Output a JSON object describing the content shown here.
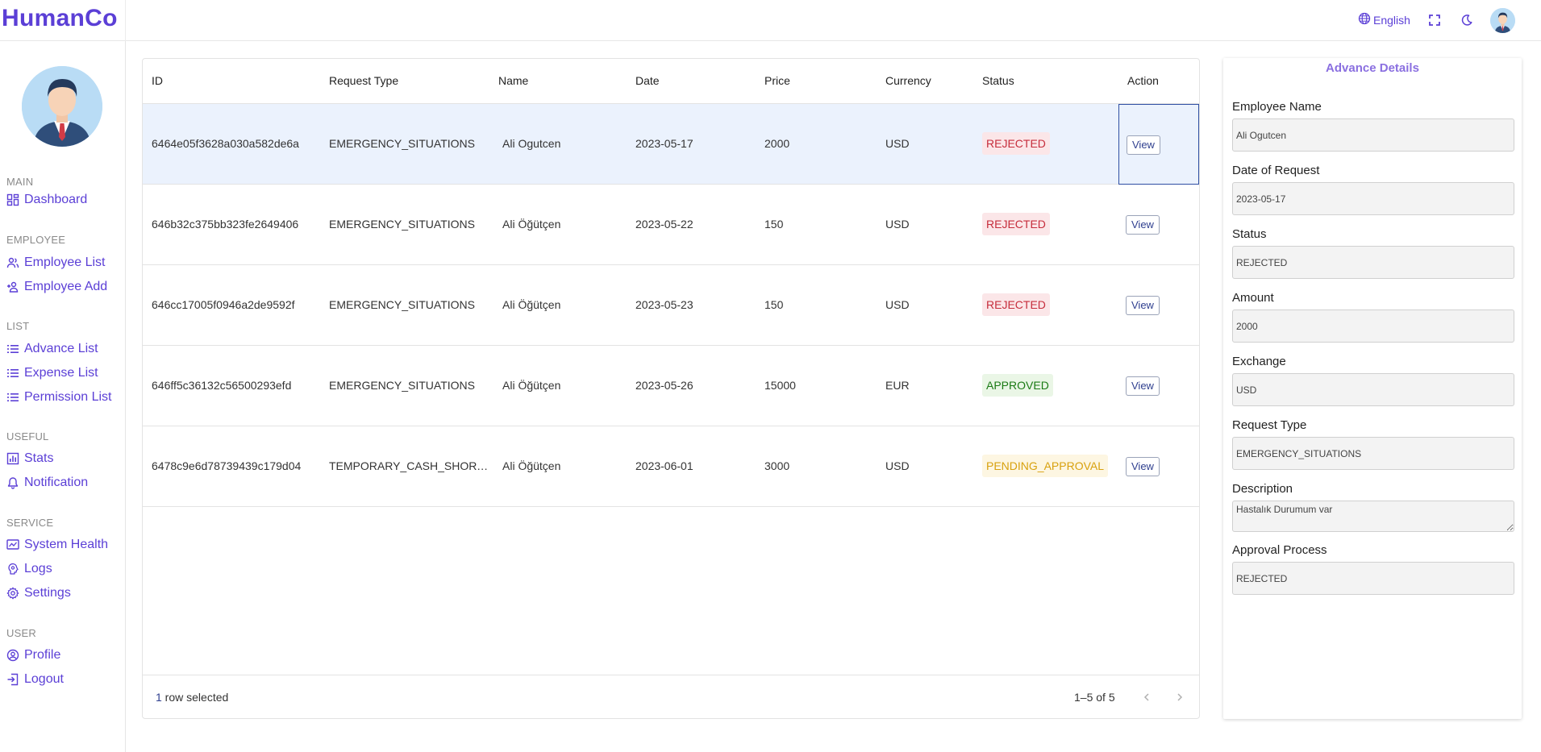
{
  "app": {
    "logo": "HumanCo"
  },
  "topbar": {
    "language": "English"
  },
  "sidebar": {
    "sections": [
      {
        "title": "MAIN",
        "items": [
          {
            "label": "Dashboard",
            "icon": "dashboard-icon"
          }
        ]
      },
      {
        "title": "EMPLOYEE",
        "items": [
          {
            "label": "Employee List",
            "icon": "people-icon"
          },
          {
            "label": "Employee Add",
            "icon": "person-add-icon"
          }
        ]
      },
      {
        "title": "LIST",
        "items": [
          {
            "label": "Advance List",
            "icon": "list-icon"
          },
          {
            "label": "Expense List",
            "icon": "list-icon"
          },
          {
            "label": "Permission List",
            "icon": "list-icon"
          }
        ]
      },
      {
        "title": "USEFUL",
        "items": [
          {
            "label": "Stats",
            "icon": "chart-icon"
          },
          {
            "label": "Notification",
            "icon": "bell-icon"
          }
        ]
      },
      {
        "title": "SERVICE",
        "items": [
          {
            "label": "System Health",
            "icon": "monitor-icon"
          },
          {
            "label": "Logs",
            "icon": "psychology-icon"
          },
          {
            "label": "Settings",
            "icon": "gear-icon"
          }
        ]
      },
      {
        "title": "USER",
        "items": [
          {
            "label": "Profile",
            "icon": "account-circle-icon"
          },
          {
            "label": "Logout",
            "icon": "logout-icon"
          }
        ]
      }
    ]
  },
  "table": {
    "columns": [
      "ID",
      "Request Type",
      "Name",
      "Date",
      "Price",
      "Currency",
      "Status",
      "Action"
    ],
    "rows": [
      {
        "id": "6464e05f3628a030a582de6a",
        "type": "EMERGENCY_SITUATIONS",
        "name": "Ali Ogutcen",
        "date": "2023-05-17",
        "price": "2000",
        "currency": "USD",
        "status": "REJECTED",
        "action": "View"
      },
      {
        "id": "646b32c375bb323fe2649406",
        "type": "EMERGENCY_SITUATIONS",
        "name": "Ali Öğütçen",
        "date": "2023-05-22",
        "price": "150",
        "currency": "USD",
        "status": "REJECTED",
        "action": "View"
      },
      {
        "id": "646cc17005f0946a2de9592f",
        "type": "EMERGENCY_SITUATIONS",
        "name": "Ali Öğütçen",
        "date": "2023-05-23",
        "price": "150",
        "currency": "USD",
        "status": "REJECTED",
        "action": "View"
      },
      {
        "id": "646ff5c36132c56500293efd",
        "type": "EMERGENCY_SITUATIONS",
        "name": "Ali Öğütçen",
        "date": "2023-05-26",
        "price": "15000",
        "currency": "EUR",
        "status": "APPROVED",
        "action": "View"
      },
      {
        "id": "6478c9e6d78739439c179d04",
        "type": "TEMPORARY_CASH_SHORT…",
        "name": "Ali Öğütçen",
        "date": "2023-06-01",
        "price": "3000",
        "currency": "USD",
        "status": "PENDING_APPROVAL",
        "action": "View"
      }
    ],
    "footer": {
      "selected_count": "1",
      "selected_suffix": " row selected",
      "pagination": "1–5 of 5"
    },
    "status_colors": {
      "REJECTED": "#c62d3c",
      "APPROVED": "#1a7a14",
      "PENDING_APPROVAL": "#d8a10e"
    }
  },
  "details": {
    "title": "Advance Details",
    "fields": [
      {
        "label": "Employee Name",
        "value": "Ali Ogutcen"
      },
      {
        "label": "Date of Request",
        "value": "2023-05-17"
      },
      {
        "label": "Status",
        "value": "REJECTED"
      },
      {
        "label": "Amount",
        "value": "2000"
      },
      {
        "label": "Exchange",
        "value": "USD"
      },
      {
        "label": "Request Type",
        "value": "EMERGENCY_SITUATIONS"
      }
    ],
    "description": {
      "label": "Description",
      "value": "Hastalık Durumum var"
    },
    "approval": {
      "label": "Approval Process",
      "value": "REJECTED"
    }
  },
  "colors": {
    "accent": "#5b3fd6",
    "selected_row": "#ebf2fd",
    "details_title": "#8a6fe0"
  }
}
